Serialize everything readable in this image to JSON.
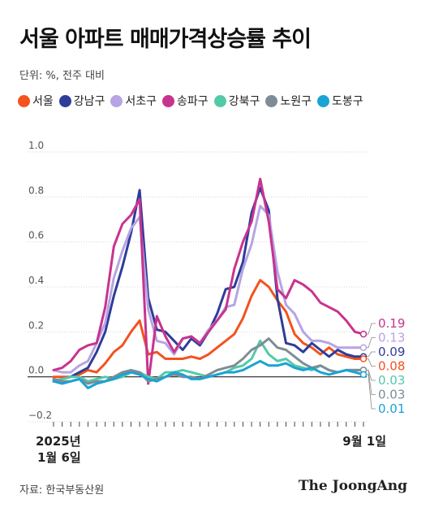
{
  "title": "서울 아파트 매매가격상승률 추이",
  "unit": "단위: %, 전주 대비",
  "source": "자료: 한국부동산원",
  "brand": "The JoongAng",
  "chart_data": {
    "type": "line",
    "ylim": [
      -0.2,
      1.0
    ],
    "y_ticks": [
      {
        "value": 1.0,
        "label": "1.0"
      },
      {
        "value": 0.8,
        "label": "0.8"
      },
      {
        "value": 0.6,
        "label": "0.6"
      },
      {
        "value": 0.4,
        "label": "0.4"
      },
      {
        "value": 0.2,
        "label": "0.2"
      },
      {
        "value": 0.0,
        "label": "0.0"
      },
      {
        "value": -0.2,
        "label": "−0.2"
      }
    ],
    "x_start_label": [
      "2025년",
      "1월 6일"
    ],
    "x_end_label": "9월 1일",
    "grid": true,
    "legend_position": "top",
    "series": [
      {
        "name": "서울",
        "color": "#f2531f",
        "end_label": "0.08",
        "values": [
          0.0,
          0.0,
          0.0,
          0.01,
          0.03,
          0.02,
          0.06,
          0.11,
          0.14,
          0.2,
          0.25,
          0.1,
          0.11,
          0.08,
          0.08,
          0.08,
          0.09,
          0.08,
          0.1,
          0.13,
          0.16,
          0.19,
          0.26,
          0.36,
          0.43,
          0.4,
          0.34,
          0.29,
          0.19,
          0.15,
          0.13,
          0.1,
          0.13,
          0.1,
          0.09,
          0.08,
          0.08
        ]
      },
      {
        "name": "강남구",
        "color": "#2e3d98",
        "end_label": "0.09",
        "values": [
          -0.02,
          -0.01,
          0.0,
          0.02,
          0.04,
          0.11,
          0.2,
          0.36,
          0.49,
          0.64,
          0.83,
          0.35,
          0.21,
          0.2,
          0.16,
          0.12,
          0.17,
          0.14,
          0.2,
          0.28,
          0.39,
          0.4,
          0.51,
          0.73,
          0.84,
          0.74,
          0.35,
          0.15,
          0.14,
          0.11,
          0.15,
          0.12,
          0.09,
          0.12,
          0.1,
          0.09,
          0.09
        ]
      },
      {
        "name": "서초구",
        "color": "#b6a4e3",
        "end_label": "0.13",
        "values": [
          0.03,
          0.02,
          0.02,
          0.05,
          0.07,
          0.15,
          0.24,
          0.44,
          0.56,
          0.66,
          0.71,
          0.3,
          0.16,
          0.15,
          0.1,
          0.17,
          0.18,
          0.15,
          0.21,
          0.25,
          0.31,
          0.32,
          0.48,
          0.59,
          0.76,
          0.72,
          0.47,
          0.32,
          0.28,
          0.2,
          0.16,
          0.16,
          0.15,
          0.13,
          0.13,
          0.13,
          0.13
        ]
      },
      {
        "name": "송파구",
        "color": "#c8338f",
        "end_label": "0.19",
        "values": [
          0.03,
          0.04,
          0.07,
          0.12,
          0.14,
          0.15,
          0.31,
          0.58,
          0.68,
          0.72,
          0.79,
          -0.03,
          0.27,
          0.18,
          0.11,
          0.17,
          0.18,
          0.15,
          0.2,
          0.25,
          0.3,
          0.48,
          0.6,
          0.69,
          0.88,
          0.69,
          0.39,
          0.35,
          0.43,
          0.41,
          0.38,
          0.33,
          0.31,
          0.29,
          0.25,
          0.2,
          0.19
        ]
      },
      {
        "name": "강북구",
        "color": "#53c9a8",
        "end_label": "0.03",
        "values": [
          -0.02,
          -0.01,
          0.0,
          0.0,
          -0.02,
          -0.01,
          0.0,
          -0.01,
          0.0,
          0.02,
          0.02,
          0.0,
          -0.01,
          0.02,
          0.02,
          0.03,
          0.02,
          0.01,
          0.0,
          0.01,
          0.02,
          0.04,
          0.05,
          0.08,
          0.16,
          0.1,
          0.07,
          0.08,
          0.05,
          0.04,
          0.03,
          0.05,
          0.03,
          0.02,
          0.03,
          0.03,
          0.03
        ]
      },
      {
        "name": "노원구",
        "color": "#7f8c95",
        "end_label": "0.03",
        "values": [
          -0.01,
          -0.02,
          -0.02,
          -0.01,
          -0.03,
          -0.02,
          -0.02,
          0.0,
          0.02,
          0.03,
          0.02,
          -0.02,
          -0.01,
          0.0,
          0.01,
          0.0,
          0.0,
          -0.01,
          0.01,
          0.03,
          0.04,
          0.05,
          0.08,
          0.12,
          0.14,
          0.17,
          0.13,
          0.12,
          0.09,
          0.06,
          0.04,
          0.05,
          0.03,
          0.02,
          0.03,
          0.03,
          0.03
        ]
      },
      {
        "name": "도봉구",
        "color": "#1aa3d4",
        "end_label": "0.01",
        "values": [
          -0.02,
          -0.03,
          -0.02,
          -0.01,
          -0.05,
          -0.03,
          -0.02,
          -0.01,
          0.01,
          0.02,
          0.01,
          -0.01,
          -0.02,
          0.0,
          0.02,
          0.01,
          -0.01,
          -0.01,
          0.0,
          0.01,
          0.02,
          0.02,
          0.03,
          0.05,
          0.07,
          0.05,
          0.05,
          0.06,
          0.04,
          0.03,
          0.04,
          0.02,
          0.01,
          0.02,
          0.03,
          0.02,
          0.01
        ]
      }
    ]
  }
}
